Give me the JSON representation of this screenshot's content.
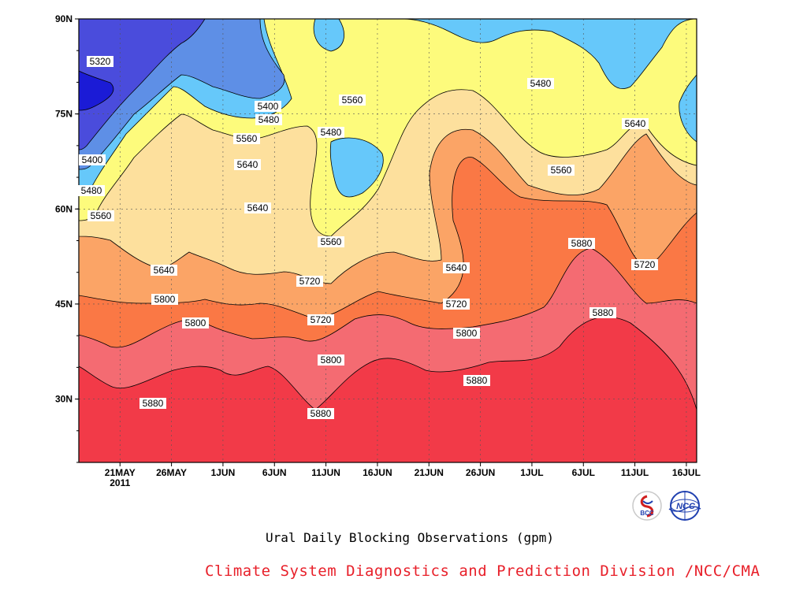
{
  "chart_data": {
    "type": "heatmap",
    "subtype": "filled-contour",
    "title": "Ural Daily Blocking Observations (gpm)",
    "credit": "Climate System Diagnostics and Prediction Division /NCC/CMA",
    "x_ticks": [
      "21MAY",
      "26MAY",
      "1JUN",
      "6JUN",
      "11JUN",
      "16JUN",
      "21JUN",
      "26JUN",
      "1JUL",
      "6JUL",
      "11JUL",
      "16JUL"
    ],
    "x_year_label": "2011",
    "x_range": [
      "2011-05-17",
      "2011-07-16"
    ],
    "y_ticks": [
      "30N",
      "45N",
      "60N",
      "75N",
      "90N"
    ],
    "y_range": [
      20,
      90
    ],
    "levels": [
      5320,
      5400,
      5480,
      5560,
      5640,
      5720,
      5800,
      5880
    ],
    "contour_labels": [
      {
        "text": "5320"
      },
      {
        "text": "5400"
      },
      {
        "text": "5480"
      },
      {
        "text": "5400"
      },
      {
        "text": "5480"
      },
      {
        "text": "5560"
      },
      {
        "text": "5560"
      },
      {
        "text": "5480"
      },
      {
        "text": "5640"
      },
      {
        "text": "5640"
      },
      {
        "text": "5560"
      },
      {
        "text": "5480"
      },
      {
        "text": "5560"
      },
      {
        "text": "5640"
      },
      {
        "text": "5560"
      },
      {
        "text": "5640"
      },
      {
        "text": "5640"
      },
      {
        "text": "5720"
      },
      {
        "text": "5800"
      },
      {
        "text": "5720"
      },
      {
        "text": "5800"
      },
      {
        "text": "5720"
      },
      {
        "text": "5800"
      },
      {
        "text": "5880"
      },
      {
        "text": "5880"
      },
      {
        "text": "5800"
      },
      {
        "text": "5880"
      },
      {
        "text": "5720"
      },
      {
        "text": "5880"
      },
      {
        "text": "5880"
      }
    ],
    "colors": {
      "5320": "#1b1bd6",
      "5400": "#4a4cdc",
      "5480": "#5e8fe6",
      "5560": "#66c8fa",
      "5640": "#fdfb7c",
      "5720": "#fde09d",
      "5800": "#fba466",
      "5880": "#fa7845",
      "5960": "#f46b72",
      "6040": "#f23a48"
    },
    "grid": true
  },
  "logos": [
    {
      "text": "BCC",
      "icon": "bcc-logo-icon"
    },
    {
      "text": "NCC",
      "icon": "ncc-logo-icon"
    }
  ]
}
